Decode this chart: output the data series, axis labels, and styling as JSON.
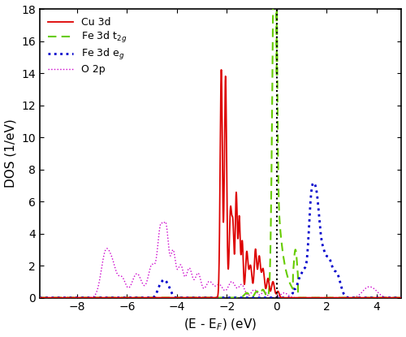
{
  "title": "",
  "xlabel": "(E - E$_F$) (eV)",
  "ylabel": "DOS (1/eV)",
  "xlim": [
    -9.5,
    5.0
  ],
  "ylim": [
    0,
    18
  ],
  "xticks": [
    -8,
    -6,
    -4,
    -2,
    0,
    2,
    4
  ],
  "yticks": [
    0,
    2,
    4,
    6,
    8,
    10,
    12,
    14,
    16,
    18
  ],
  "fermi_line_x": 0.0,
  "background_color": "#ffffff",
  "cu_color": "#dd0000",
  "fe_t2g_color": "#66cc00",
  "fe_eg_color": "#0000cc",
  "o2p_color": "#cc00cc",
  "cu_lw": 1.3,
  "fe_t2g_lw": 1.5,
  "fe_eg_lw": 2.0,
  "o2p_lw": 1.0
}
